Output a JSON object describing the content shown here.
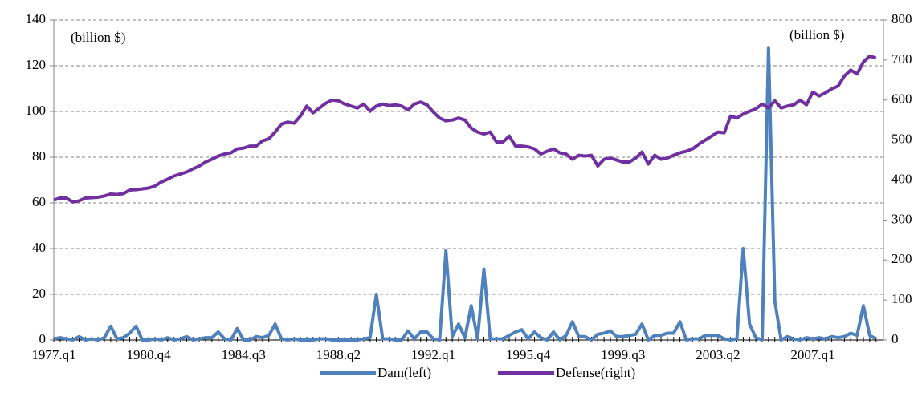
{
  "chart_data": {
    "type": "line",
    "annotations": [
      "(billion $)",
      "(billion $)"
    ],
    "categories": [
      "1977.q1",
      null,
      null,
      null,
      null,
      null,
      null,
      null,
      null,
      null,
      null,
      null,
      null,
      null,
      null,
      "1980.q4",
      null,
      null,
      null,
      null,
      null,
      null,
      null,
      null,
      null,
      null,
      null,
      null,
      null,
      null,
      "1984.q3",
      null,
      null,
      null,
      null,
      null,
      null,
      null,
      null,
      null,
      null,
      null,
      null,
      null,
      null,
      "1988.q2",
      null,
      null,
      null,
      null,
      null,
      null,
      null,
      null,
      null,
      null,
      null,
      null,
      null,
      null,
      "1992.q1",
      null,
      null,
      null,
      null,
      null,
      null,
      null,
      null,
      null,
      null,
      null,
      null,
      null,
      null,
      "1995.q4",
      null,
      null,
      null,
      null,
      null,
      null,
      null,
      null,
      null,
      null,
      null,
      null,
      null,
      null,
      "1999.q3",
      null,
      null,
      null,
      null,
      null,
      null,
      null,
      null,
      null,
      null,
      null,
      null,
      null,
      null,
      "2003.q2",
      null,
      null,
      null,
      null,
      null,
      null,
      null,
      null,
      null,
      null,
      null,
      null,
      null,
      null,
      "2007.q1",
      null,
      null,
      null,
      null,
      null,
      null,
      null,
      null,
      null,
      null
    ],
    "series": [
      {
        "name": "Dam(left)",
        "color": "#4f81bd",
        "axis": "y",
        "values": [
          0.5,
          1,
          0.5,
          0,
          1.5,
          0,
          0.5,
          0,
          1,
          6,
          0.5,
          1,
          3,
          6,
          0,
          0,
          0.5,
          0,
          1,
          0,
          0.5,
          1.5,
          0,
          0.5,
          1,
          1,
          3.5,
          0.5,
          0,
          5,
          0,
          0,
          1.5,
          1,
          2,
          7,
          0.5,
          0,
          0.5,
          0,
          0,
          0,
          0.5,
          0.5,
          0,
          0,
          0,
          0,
          0,
          0.5,
          1,
          20,
          0.5,
          0.5,
          0,
          0,
          4,
          0.5,
          3.5,
          3.5,
          0.5,
          0,
          39,
          1.5,
          7,
          1,
          15,
          0.5,
          31,
          0.5,
          0.5,
          0.5,
          2,
          3.5,
          4.5,
          0.5,
          3.5,
          1,
          0,
          3.5,
          0,
          2,
          8,
          1.5,
          1.5,
          0,
          2.5,
          3,
          4,
          1.5,
          1.5,
          2,
          2.5,
          7,
          0,
          2,
          2,
          3,
          3,
          8,
          0,
          0.5,
          0.5,
          2,
          2,
          2,
          0.5,
          0,
          0.5,
          40,
          7,
          1,
          0,
          128,
          17,
          0,
          1.5,
          0.5,
          0,
          1,
          0.5,
          1,
          0.5,
          1.5,
          1,
          1.5,
          3,
          2,
          15,
          2,
          0.5
        ]
      },
      {
        "name": "Defense(right)",
        "color": "#7030a0",
        "axis": "y2",
        "values": [
          350,
          355,
          355,
          345,
          348,
          355,
          356,
          357,
          360,
          365,
          364,
          366,
          375,
          376,
          378,
          380,
          385,
          395,
          402,
          410,
          415,
          420,
          428,
          435,
          445,
          452,
          460,
          465,
          468,
          478,
          480,
          485,
          485,
          498,
          503,
          520,
          540,
          545,
          542,
          560,
          585,
          568,
          580,
          592,
          600,
          598,
          590,
          585,
          580,
          590,
          572,
          585,
          590,
          586,
          588,
          585,
          575,
          590,
          595,
          588,
          570,
          555,
          548,
          550,
          555,
          550,
          530,
          520,
          515,
          520,
          495,
          495,
          510,
          485,
          485,
          483,
          478,
          465,
          472,
          478,
          468,
          465,
          452,
          462,
          460,
          462,
          435,
          452,
          455,
          450,
          445,
          445,
          455,
          470,
          440,
          462,
          452,
          455,
          462,
          468,
          472,
          478,
          490,
          500,
          510,
          520,
          518,
          560,
          555,
          565,
          572,
          578,
          590,
          580,
          598,
          580,
          585,
          588,
          600,
          588,
          620,
          610,
          618,
          628,
          635,
          660,
          675,
          665,
          695,
          710,
          705
        ]
      }
    ],
    "ylim": [
      0,
      140
    ],
    "yticks": [
      0,
      20,
      40,
      60,
      80,
      100,
      120,
      140
    ],
    "y2lim": [
      0,
      800
    ],
    "y2ticks": [
      0,
      100,
      200,
      300,
      400,
      500,
      600,
      700,
      800
    ],
    "grid": true,
    "legend": "bottom"
  }
}
